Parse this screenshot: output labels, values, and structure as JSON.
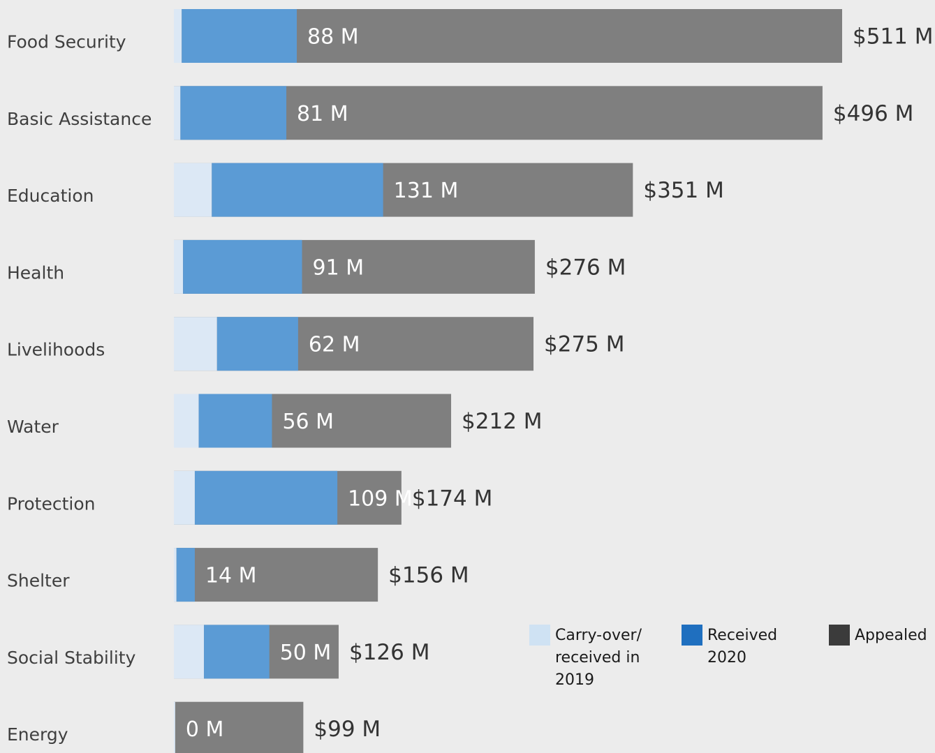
{
  "chart_data": {
    "type": "bar",
    "orientation": "horizontal",
    "stacked": true,
    "categories": [
      "Food Security",
      "Basic Assistance",
      "Education",
      "Health",
      "Livelihoods",
      "Water",
      "Protection",
      "Shelter",
      "Social Stability",
      "Energy"
    ],
    "series": [
      {
        "name": "Carry-over/ received in 2019",
        "color": "#dce8f5",
        "values": [
          6,
          5,
          29,
          7,
          33,
          19,
          16,
          2,
          23,
          1
        ]
      },
      {
        "name": "Received 2020",
        "color": "#5b9bd5",
        "values": [
          88,
          81,
          131,
          91,
          62,
          56,
          109,
          14,
          50,
          0
        ]
      },
      {
        "name": "Appealed",
        "color": "#7f7f7f",
        "values": [
          511,
          496,
          351,
          276,
          275,
          212,
          174,
          156,
          126,
          99
        ]
      }
    ],
    "received_labels": [
      "88 M",
      "81 M",
      "131 M",
      "91 M",
      "62 M",
      "56 M",
      "109 M",
      "14 M",
      "50 M",
      "0 M"
    ],
    "appealed_labels": [
      "$511 M",
      "$496 M",
      "$351 M",
      "$276 M",
      "$275 M",
      "$212 M",
      "$174 M",
      "$156 M",
      "$126 M",
      "$99 M"
    ],
    "legend": {
      "placement": "bottom-right",
      "items": [
        {
          "lines": [
            "Carry-over/",
            "received in",
            "2019"
          ],
          "color": "#cfe2f3"
        },
        {
          "lines": [
            "Received",
            "2020"
          ],
          "color": "#1f6fbf"
        },
        {
          "lines": [
            "Appealed"
          ],
          "color": "#3b3b3b"
        }
      ]
    },
    "grid": false
  }
}
